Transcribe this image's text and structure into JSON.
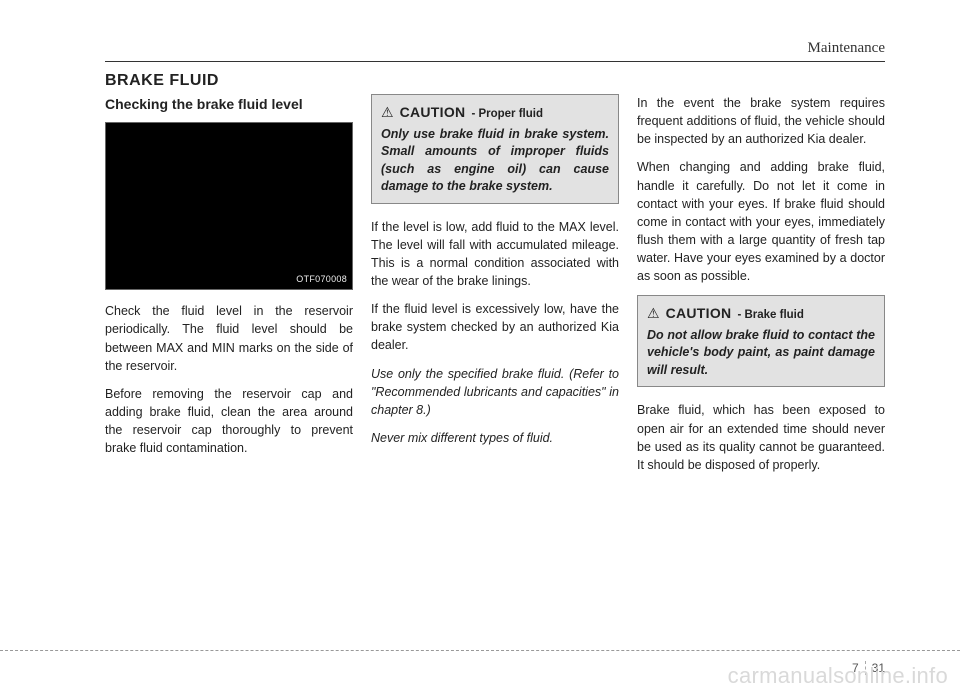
{
  "header": {
    "section": "Maintenance"
  },
  "title": "BRAKE FLUID",
  "col1": {
    "subtitle": "Checking the brake fluid level",
    "image_code": "OTF070008",
    "p1": "Check the fluid level in the reservoir periodically. The fluid level should be between MAX and MIN marks on the side of the reservoir.",
    "p2": "Before removing the reservoir cap and adding brake fluid, clean the area around the reservoir cap thoroughly to prevent brake fluid contamination."
  },
  "col2": {
    "caution_label": "CAUTION",
    "caution_sub": "- Proper fluid",
    "caution_body": "Only use brake fluid in brake system. Small amounts of improper fluids (such as engine oil) can cause damage to the brake system.",
    "p1": "If the level is low, add fluid to the MAX level. The level will fall with accumulated mileage. This is a normal condition associated with the wear of the brake linings.",
    "p2": "If the fluid level is excessively low, have the brake system checked by an authorized Kia dealer.",
    "p3": "Use only the specified brake fluid. (Refer to \"Recommended lubricants and capacities\" in chapter 8.)",
    "p4": "Never mix different types of fluid."
  },
  "col3": {
    "p1": "In the event the brake system requires frequent additions of fluid, the vehicle should be inspected by an authorized Kia dealer.",
    "p2": "When changing and adding brake fluid, handle it carefully. Do not let it come in contact with your eyes. If brake fluid should come in contact with your eyes, immediately flush them with a large quantity of fresh tap water. Have your eyes examined by a doctor as soon as possible.",
    "caution_label": "CAUTION",
    "caution_sub": "- Brake fluid",
    "caution_body": "Do not allow brake fluid to contact the vehicle's body paint, as paint damage will result.",
    "p3": "Brake fluid, which has been exposed to open air for an extended time should never be used as its quality cannot be guaranteed. It should be disposed of properly."
  },
  "footer": {
    "chapter": "7",
    "page": "31"
  },
  "watermark": "carmanualsonline.info"
}
